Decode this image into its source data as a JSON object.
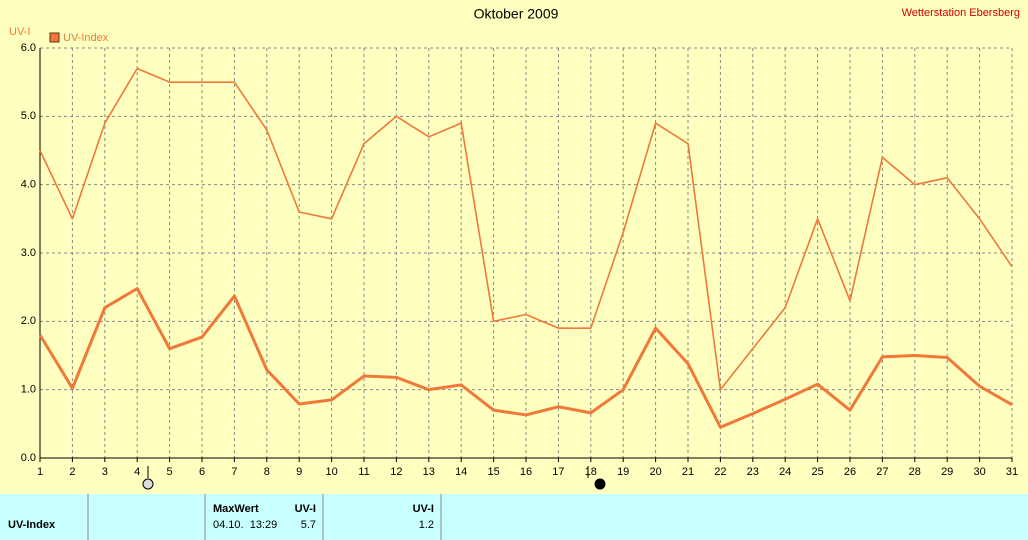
{
  "chart_data": {
    "type": "line",
    "title": "Oktober 2009",
    "annotation": "Wetterstation Ebersberg",
    "ylabel": "UV-I",
    "x": [
      1,
      2,
      3,
      4,
      5,
      6,
      7,
      8,
      9,
      10,
      11,
      12,
      13,
      14,
      15,
      16,
      17,
      18,
      19,
      20,
      21,
      22,
      23,
      24,
      25,
      26,
      27,
      28,
      29,
      30,
      31
    ],
    "xlim": [
      1,
      31
    ],
    "ylim": [
      0,
      6
    ],
    "yticks": [
      {
        "value": 0,
        "label": "0.0"
      },
      {
        "value": 1,
        "label": "1.0"
      },
      {
        "value": 2,
        "label": "2.0"
      },
      {
        "value": 3,
        "label": "3.0"
      },
      {
        "value": 4,
        "label": "4.0"
      },
      {
        "value": 5,
        "label": "5.0"
      },
      {
        "value": 6,
        "label": "6.0"
      }
    ],
    "grid": true,
    "series": [
      {
        "name": "UV-Index",
        "color": "#f07838",
        "values": [
          4.5,
          3.5,
          4.9,
          5.7,
          5.5,
          5.5,
          5.5,
          4.8,
          3.6,
          3.5,
          4.6,
          5.0,
          4.7,
          4.9,
          2.0,
          2.1,
          1.9,
          1.9,
          3.3,
          4.9,
          4.6,
          1.0,
          1.6,
          2.2,
          3.5,
          2.3,
          4.4,
          4.0,
          4.1,
          3.5,
          2.8
        ]
      },
      {
        "color": "#f07838",
        "values": [
          1.8,
          1.02,
          2.2,
          2.48,
          1.6,
          1.77,
          2.37,
          1.29,
          0.79,
          0.85,
          1.2,
          1.18,
          1.0,
          1.07,
          0.7,
          0.63,
          0.75,
          0.66,
          1.0,
          1.9,
          1.38,
          0.45,
          0.65,
          0.86,
          1.08,
          0.7,
          1.48,
          1.5,
          1.47,
          1.05,
          0.78
        ]
      }
    ]
  },
  "table": {
    "headers": [
      "MaxWert",
      "UV-I",
      "UV-I"
    ],
    "rows": [
      [
        "UV-Index",
        "04.10.  13:29",
        "5.7",
        "1.2"
      ]
    ]
  }
}
